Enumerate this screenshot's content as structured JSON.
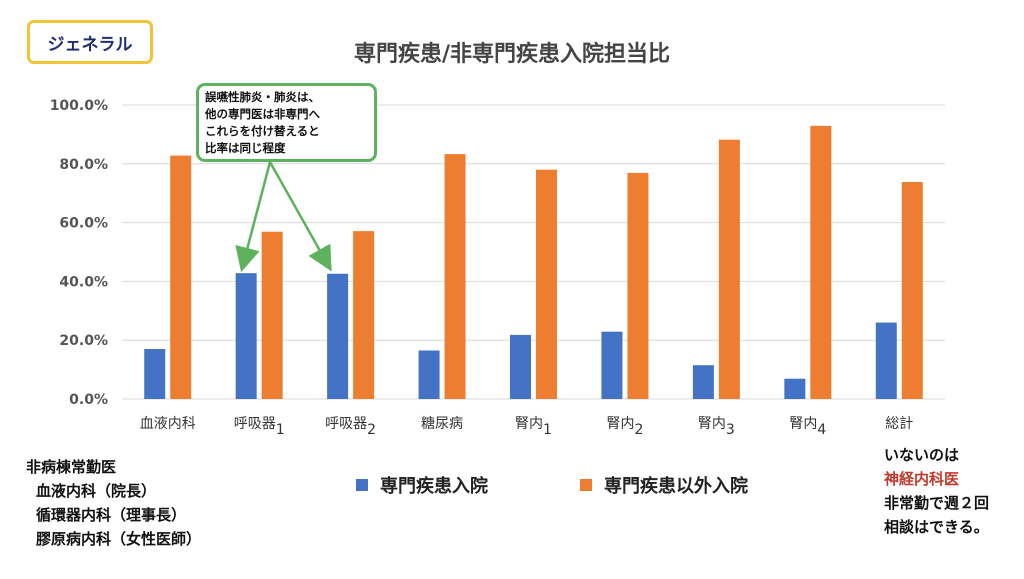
{
  "tag_label": "ジェネラル",
  "callout": {
    "lines": [
      "誤嚥性肺炎・肺炎は、",
      "他の専門医は非専門へ",
      "これらを付け替えると",
      "比率は同じ程度"
    ]
  },
  "notes_left": {
    "title": "非病棟常勤医",
    "items": [
      "血液内科（院長）",
      "循環器内科（理事長）",
      "膠原病内科（女性医師）"
    ]
  },
  "notes_right": {
    "line1": "いないのは",
    "highlight": "神経内科医",
    "line3": "非常勤で週２回",
    "line4": "相談はできる。"
  },
  "colors": {
    "series1": "#4472c4",
    "series2": "#ed7d31",
    "highlight": "#c0392b",
    "callout_border": "#5db35d",
    "tag_border": "#f2c335"
  },
  "chart_data": {
    "type": "bar",
    "title": "専門疾患/非専門疾患入院担当比",
    "categories": [
      {
        "label": "血液内科",
        "sub": ""
      },
      {
        "label": "呼吸器",
        "sub": "1"
      },
      {
        "label": "呼吸器",
        "sub": "2"
      },
      {
        "label": "糖尿病",
        "sub": ""
      },
      {
        "label": "腎内",
        "sub": "1"
      },
      {
        "label": "腎内",
        "sub": "2"
      },
      {
        "label": "腎内",
        "sub": "3"
      },
      {
        "label": "腎内",
        "sub": "4"
      },
      {
        "label": "総計",
        "sub": ""
      }
    ],
    "series": [
      {
        "name": "専門疾患入院",
        "values": [
          17.0,
          42.8,
          42.6,
          16.5,
          21.8,
          22.9,
          11.5,
          6.9,
          26.0
        ]
      },
      {
        "name": "専門疾患以外入院",
        "values": [
          82.8,
          56.9,
          57.1,
          83.3,
          78.0,
          76.9,
          88.2,
          92.9,
          73.8
        ]
      }
    ],
    "yticks": [
      "0.0%",
      "20.0%",
      "40.0%",
      "60.0%",
      "80.0%",
      "100.0%"
    ],
    "ylim": [
      0,
      100
    ],
    "grid": true,
    "legend_position": "bottom"
  }
}
